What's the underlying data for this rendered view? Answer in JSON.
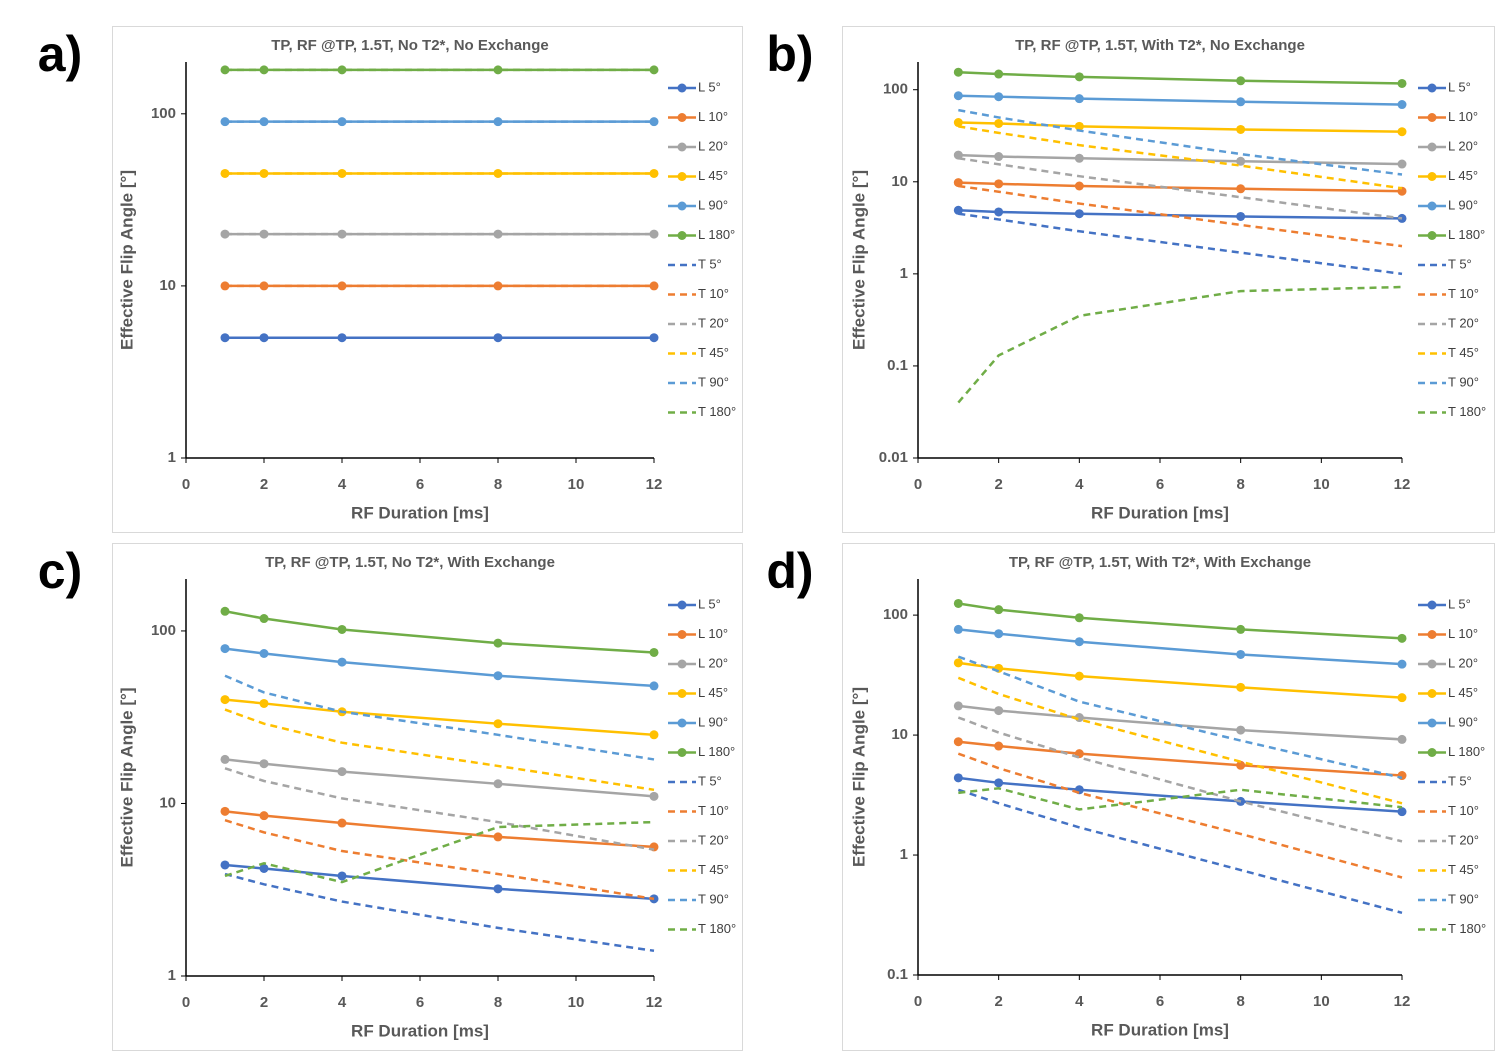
{
  "chart_data": [
    {
      "type": "line",
      "label": "a)",
      "title": "TP, RF @TP, 1.5T, No T2*, No Exchange",
      "x_label": "RF Duration [ms]",
      "y_label": "Effective Flip Angle [°]",
      "log_y": true,
      "grid": false,
      "legend": "right",
      "x": [
        1,
        2,
        4,
        8,
        12
      ],
      "xlim": [
        0,
        12
      ],
      "xticks": [
        0,
        2,
        4,
        6,
        8,
        10,
        12
      ],
      "ylim": [
        1,
        200
      ],
      "yticks": [
        1,
        10,
        100
      ],
      "series": [
        {
          "name": "L 5°",
          "color": "#4472c4",
          "line_style": "solid",
          "marker": true,
          "values": [
            5,
            5,
            5,
            5,
            5
          ]
        },
        {
          "name": "L 10°",
          "color": "#ed7d31",
          "line_style": "solid",
          "marker": true,
          "values": [
            10,
            10,
            10,
            10,
            10
          ]
        },
        {
          "name": "L 20°",
          "color": "#a5a5a5",
          "line_style": "solid",
          "marker": true,
          "values": [
            20,
            20,
            20,
            20,
            20
          ]
        },
        {
          "name": "L 45°",
          "color": "#ffc000",
          "line_style": "solid",
          "marker": true,
          "values": [
            45,
            45,
            45,
            45,
            45
          ]
        },
        {
          "name": "L 90°",
          "color": "#5b9bd5",
          "line_style": "solid",
          "marker": true,
          "values": [
            90,
            90,
            90,
            90,
            90
          ]
        },
        {
          "name": "L 180°",
          "color": "#70ad47",
          "line_style": "solid",
          "marker": true,
          "values": [
            180,
            180,
            180,
            180,
            180
          ]
        },
        {
          "name": "T 5°",
          "color": "#4472c4",
          "line_style": "dashed",
          "marker": false,
          "values": [
            5,
            5,
            5,
            5,
            5
          ]
        },
        {
          "name": "T 10°",
          "color": "#ed7d31",
          "line_style": "dashed",
          "marker": false,
          "values": [
            10,
            10,
            10,
            10,
            10
          ]
        },
        {
          "name": "T 20°",
          "color": "#a5a5a5",
          "line_style": "dashed",
          "marker": false,
          "values": [
            20,
            20,
            20,
            20,
            20
          ]
        },
        {
          "name": "T 45°",
          "color": "#ffc000",
          "line_style": "dashed",
          "marker": false,
          "values": [
            45,
            45,
            45,
            45,
            45
          ]
        },
        {
          "name": "T 90°",
          "color": "#5b9bd5",
          "line_style": "dashed",
          "marker": false,
          "values": [
            90,
            90,
            90,
            90,
            90
          ]
        },
        {
          "name": "T 180°",
          "color": "#70ad47",
          "line_style": "dashed",
          "marker": false,
          "values": [
            180,
            180,
            180,
            180,
            180
          ]
        }
      ]
    },
    {
      "type": "line",
      "label": "b)",
      "title": "TP, RF @TP, 1.5T, With T2*, No Exchange",
      "x_label": "RF Duration [ms]",
      "y_label": "Effective Flip Angle [°]",
      "log_y": true,
      "grid": false,
      "legend": "right",
      "x": [
        1,
        2,
        4,
        8,
        12
      ],
      "xlim": [
        0,
        12
      ],
      "xticks": [
        0,
        2,
        4,
        6,
        8,
        10,
        12
      ],
      "ylim": [
        0.01,
        200
      ],
      "yticks": [
        0.01,
        0.1,
        1,
        10,
        100
      ],
      "series": [
        {
          "name": "L 5°",
          "color": "#4472c4",
          "line_style": "solid",
          "marker": true,
          "values": [
            4.9,
            4.7,
            4.5,
            4.2,
            4.0
          ]
        },
        {
          "name": "L 10°",
          "color": "#ed7d31",
          "line_style": "solid",
          "marker": true,
          "values": [
            9.8,
            9.5,
            9.0,
            8.4,
            7.9
          ]
        },
        {
          "name": "L 20°",
          "color": "#a5a5a5",
          "line_style": "solid",
          "marker": true,
          "values": [
            19.5,
            18.8,
            18,
            16.7,
            15.6
          ]
        },
        {
          "name": "L 45°",
          "color": "#ffc000",
          "line_style": "solid",
          "marker": true,
          "values": [
            44,
            43,
            40,
            37,
            35
          ]
        },
        {
          "name": "L 90°",
          "color": "#5b9bd5",
          "line_style": "solid",
          "marker": true,
          "values": [
            86,
            84,
            80,
            74,
            69
          ]
        },
        {
          "name": "L 180°",
          "color": "#70ad47",
          "line_style": "solid",
          "marker": true,
          "values": [
            155,
            148,
            138,
            125,
            117
          ]
        },
        {
          "name": "T 5°",
          "color": "#4472c4",
          "line_style": "dashed",
          "marker": false,
          "values": [
            4.5,
            3.9,
            2.9,
            1.7,
            1.0
          ]
        },
        {
          "name": "T 10°",
          "color": "#ed7d31",
          "line_style": "dashed",
          "marker": false,
          "values": [
            9,
            7.8,
            5.8,
            3.4,
            2.0
          ]
        },
        {
          "name": "T 20°",
          "color": "#a5a5a5",
          "line_style": "dashed",
          "marker": false,
          "values": [
            18,
            15.5,
            11.5,
            6.8,
            4.0
          ]
        },
        {
          "name": "T 45°",
          "color": "#ffc000",
          "line_style": "dashed",
          "marker": false,
          "values": [
            40,
            34,
            25,
            15,
            8.5
          ]
        },
        {
          "name": "T 90°",
          "color": "#5b9bd5",
          "line_style": "dashed",
          "marker": false,
          "values": [
            60,
            50,
            36,
            20,
            12
          ]
        },
        {
          "name": "T 180°",
          "color": "#70ad47",
          "line_style": "dashed",
          "marker": false,
          "values": [
            0.04,
            0.13,
            0.35,
            0.65,
            0.72
          ]
        }
      ]
    },
    {
      "type": "line",
      "label": "c)",
      "title": "TP, RF @TP, 1.5T, No T2*, With Exchange",
      "x_label": "RF Duration [ms]",
      "y_label": "Effective Flip Angle [°]",
      "log_y": true,
      "grid": false,
      "legend": "right",
      "x": [
        1,
        2,
        4,
        8,
        12
      ],
      "xlim": [
        0,
        12
      ],
      "xticks": [
        0,
        2,
        4,
        6,
        8,
        10,
        12
      ],
      "ylim": [
        1,
        200
      ],
      "yticks": [
        1,
        10,
        100
      ],
      "series": [
        {
          "name": "L 5°",
          "color": "#4472c4",
          "line_style": "solid",
          "marker": true,
          "values": [
            4.4,
            4.2,
            3.8,
            3.2,
            2.8
          ]
        },
        {
          "name": "L 10°",
          "color": "#ed7d31",
          "line_style": "solid",
          "marker": true,
          "values": [
            9,
            8.5,
            7.7,
            6.4,
            5.6
          ]
        },
        {
          "name": "L 20°",
          "color": "#a5a5a5",
          "line_style": "solid",
          "marker": true,
          "values": [
            18,
            17,
            15.3,
            13,
            11
          ]
        },
        {
          "name": "L 45°",
          "color": "#ffc000",
          "line_style": "solid",
          "marker": true,
          "values": [
            40,
            38,
            34,
            29,
            25
          ]
        },
        {
          "name": "L 90°",
          "color": "#5b9bd5",
          "line_style": "solid",
          "marker": true,
          "values": [
            79,
            74,
            66,
            55,
            48
          ]
        },
        {
          "name": "L 180°",
          "color": "#70ad47",
          "line_style": "solid",
          "marker": true,
          "values": [
            130,
            118,
            102,
            85,
            75
          ]
        },
        {
          "name": "T 5°",
          "color": "#4472c4",
          "line_style": "dashed",
          "marker": false,
          "values": [
            3.9,
            3.4,
            2.7,
            1.9,
            1.4
          ]
        },
        {
          "name": "T 10°",
          "color": "#ed7d31",
          "line_style": "dashed",
          "marker": false,
          "values": [
            8,
            6.8,
            5.3,
            3.9,
            2.8
          ]
        },
        {
          "name": "T 20°",
          "color": "#a5a5a5",
          "line_style": "dashed",
          "marker": false,
          "values": [
            16,
            13.5,
            10.7,
            7.8,
            5.4
          ]
        },
        {
          "name": "T 45°",
          "color": "#ffc000",
          "line_style": "dashed",
          "marker": false,
          "values": [
            35,
            29,
            22.5,
            16.5,
            12
          ]
        },
        {
          "name": "T 90°",
          "color": "#5b9bd5",
          "line_style": "dashed",
          "marker": false,
          "values": [
            55,
            44,
            34,
            25,
            18
          ]
        },
        {
          "name": "T 180°",
          "color": "#70ad47",
          "line_style": "dashed",
          "marker": false,
          "values": [
            3.8,
            4.5,
            3.5,
            7.3,
            7.8
          ]
        }
      ]
    },
    {
      "type": "line",
      "label": "d)",
      "title": "TP, RF @TP, 1.5T, With T2*, With Exchange",
      "x_label": "RF Duration [ms]",
      "y_label": "Effective Flip Angle [°]",
      "log_y": true,
      "grid": false,
      "legend": "right",
      "x": [
        1,
        2,
        4,
        8,
        12
      ],
      "xlim": [
        0,
        12
      ],
      "xticks": [
        0,
        2,
        4,
        6,
        8,
        10,
        12
      ],
      "ylim": [
        0.1,
        200
      ],
      "yticks": [
        0.1,
        1,
        10,
        100
      ],
      "series": [
        {
          "name": "L 5°",
          "color": "#4472c4",
          "line_style": "solid",
          "marker": true,
          "values": [
            4.4,
            4.0,
            3.5,
            2.8,
            2.3
          ]
        },
        {
          "name": "L 10°",
          "color": "#ed7d31",
          "line_style": "solid",
          "marker": true,
          "values": [
            8.8,
            8.1,
            7.0,
            5.6,
            4.6
          ]
        },
        {
          "name": "L 20°",
          "color": "#a5a5a5",
          "line_style": "solid",
          "marker": true,
          "values": [
            17.5,
            16,
            14,
            11,
            9.2
          ]
        },
        {
          "name": "L 45°",
          "color": "#ffc000",
          "line_style": "solid",
          "marker": true,
          "values": [
            40,
            36,
            31,
            25,
            20.5
          ]
        },
        {
          "name": "L 90°",
          "color": "#5b9bd5",
          "line_style": "solid",
          "marker": true,
          "values": [
            76,
            70,
            60,
            47,
            39
          ]
        },
        {
          "name": "L 180°",
          "color": "#70ad47",
          "line_style": "solid",
          "marker": true,
          "values": [
            125,
            111,
            95,
            76,
            64
          ]
        },
        {
          "name": "T 5°",
          "color": "#4472c4",
          "line_style": "dashed",
          "marker": false,
          "values": [
            3.5,
            2.7,
            1.7,
            0.75,
            0.33
          ]
        },
        {
          "name": "T 10°",
          "color": "#ed7d31",
          "line_style": "dashed",
          "marker": false,
          "values": [
            7,
            5.3,
            3.3,
            1.5,
            0.65
          ]
        },
        {
          "name": "T 20°",
          "color": "#a5a5a5",
          "line_style": "dashed",
          "marker": false,
          "values": [
            14,
            10.5,
            6.5,
            2.8,
            1.3
          ]
        },
        {
          "name": "T 45°",
          "color": "#ffc000",
          "line_style": "dashed",
          "marker": false,
          "values": [
            30,
            22,
            13.5,
            6,
            2.7
          ]
        },
        {
          "name": "T 90°",
          "color": "#5b9bd5",
          "line_style": "dashed",
          "marker": false,
          "values": [
            45,
            34,
            19,
            9,
            4.4
          ]
        },
        {
          "name": "T 180°",
          "color": "#70ad47",
          "line_style": "dashed",
          "marker": false,
          "values": [
            3.3,
            3.6,
            2.4,
            3.5,
            2.5
          ]
        }
      ]
    }
  ]
}
